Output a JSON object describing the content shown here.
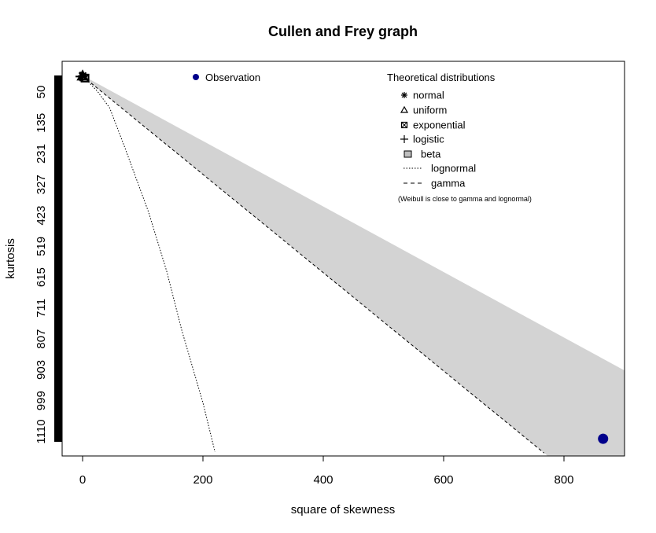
{
  "chart_data": {
    "type": "scatter",
    "title": "Cullen and Frey graph",
    "xlabel": "square of skewness",
    "ylabel": "kurtosis",
    "xlim": [
      -35,
      900
    ],
    "ylim_reversed": [
      1150,
      25
    ],
    "x_ticks": [
      "0",
      "200",
      "400",
      "600",
      "800"
    ],
    "y_ticks": [
      "50",
      "135",
      "231",
      "327",
      "423",
      "519",
      "615",
      "711",
      "807",
      "903",
      "999",
      "1110"
    ],
    "observation": {
      "x": 865,
      "y": 1110,
      "color": "#00008B"
    },
    "theoretical_points": {
      "normal": {
        "x": 0,
        "y": 3
      },
      "uniform": {
        "x": 0,
        "y": 1.8
      },
      "exponential": {
        "x": 4,
        "y": 9
      },
      "logistic": {
        "x": 0,
        "y": 4.2
      }
    },
    "beta_region": {
      "upper": [
        [
          0,
          1
        ],
        [
          900,
          901
        ]
      ],
      "lower": [
        [
          0,
          3
        ],
        [
          900,
          1353
        ]
      ],
      "color": "#D3D3D3"
    },
    "lognormal_curve": [
      [
        0,
        3
      ],
      [
        5,
        10
      ],
      [
        12,
        25
      ],
      [
        25,
        50
      ],
      [
        45,
        100
      ],
      [
        70,
        220
      ],
      [
        110,
        420
      ],
      [
        140,
        600
      ],
      [
        165,
        780
      ],
      [
        200,
        1000
      ],
      [
        220,
        1150
      ]
    ],
    "gamma_line": [
      [
        0,
        3
      ],
      [
        767,
        1153.5
      ]
    ],
    "legend_observation": "Observation",
    "legend_theoretical_title": "Theoretical distributions",
    "legend_items": [
      {
        "symbol": "asterisk",
        "label": "normal"
      },
      {
        "symbol": "triangle",
        "label": "uniform"
      },
      {
        "symbol": "box-x",
        "label": "exponential"
      },
      {
        "symbol": "plus",
        "label": "logistic"
      },
      {
        "symbol": "filled-square",
        "label": "beta"
      },
      {
        "symbol": "dotted-line",
        "label": "lognormal"
      },
      {
        "symbol": "dashed-line",
        "label": "gamma"
      }
    ],
    "legend_note": "(Weibull is close to gamma and lognormal)",
    "grid": false
  }
}
